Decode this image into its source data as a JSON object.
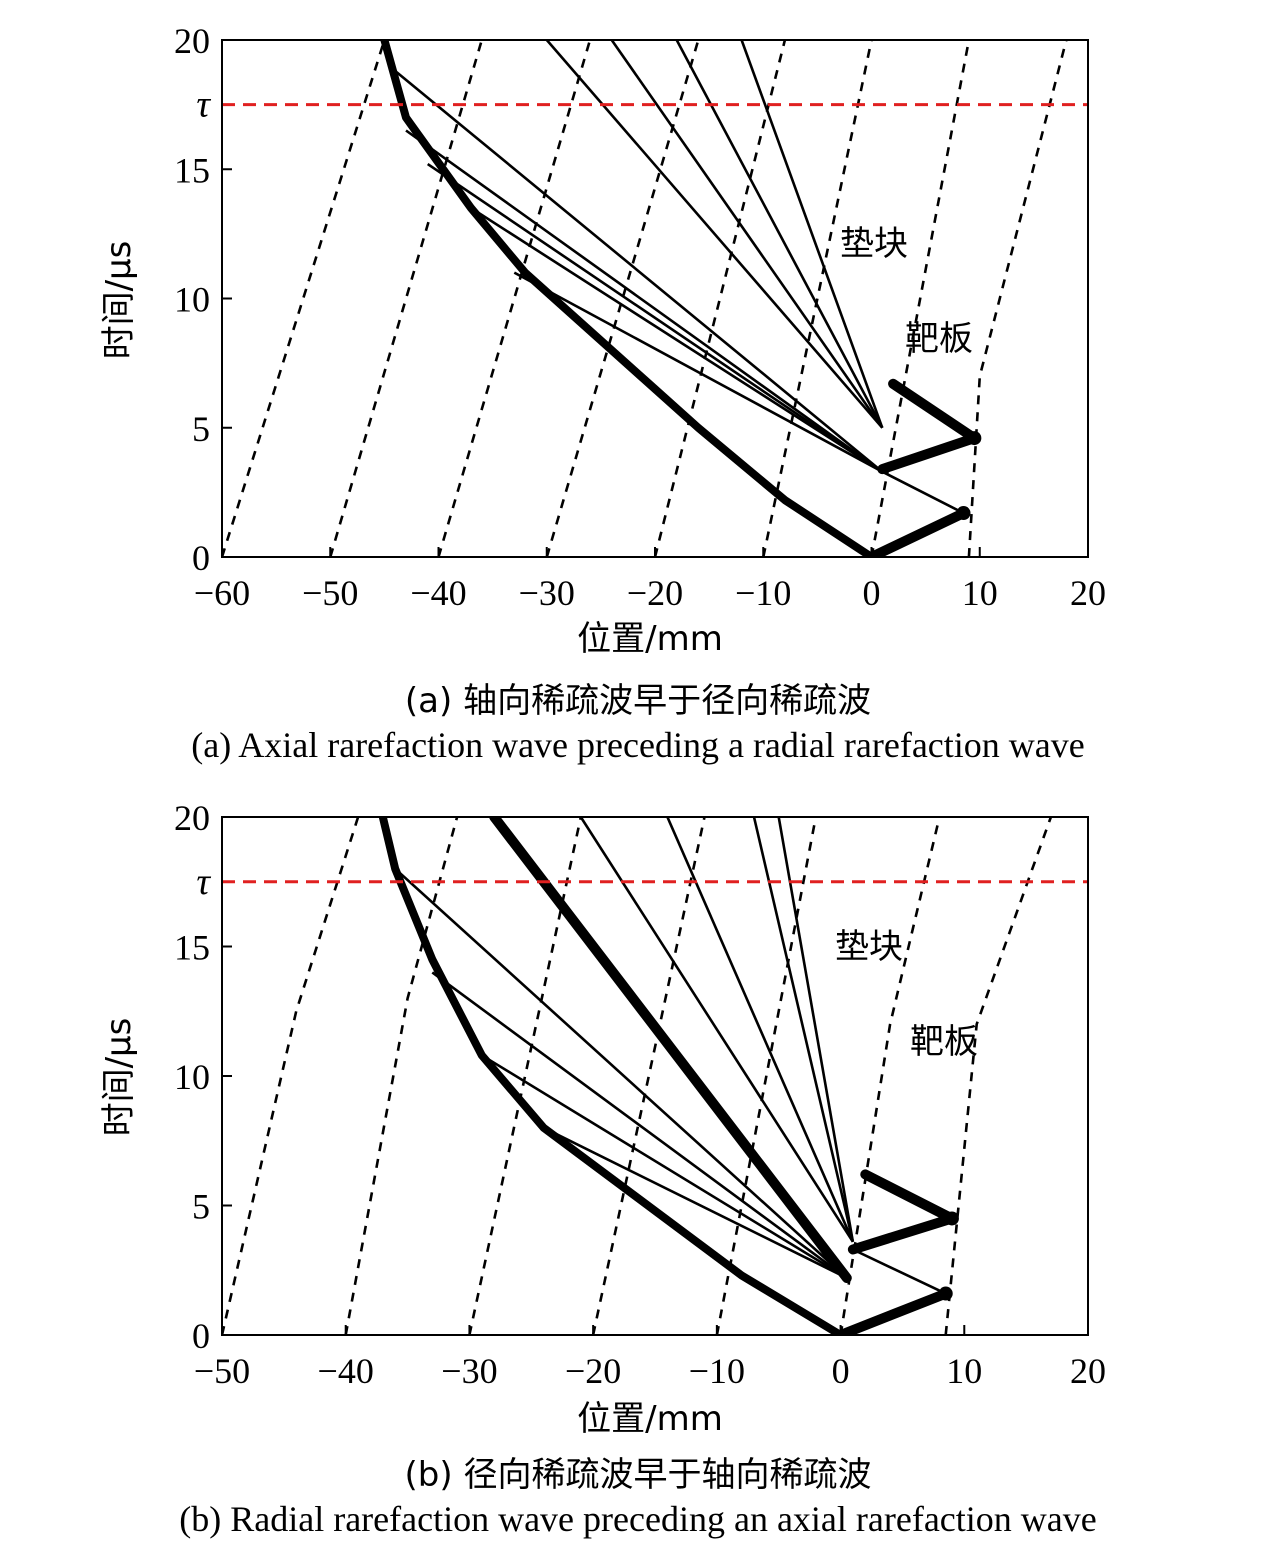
{
  "chart_data": [
    {
      "type": "line",
      "panel": "a",
      "xlabel": "位置/mm",
      "ylabel": "时间/μs",
      "xlim": [
        -60,
        20
      ],
      "ylim": [
        0,
        20
      ],
      "xticks": [
        "−60",
        "−50",
        "−40",
        "−30",
        "−20",
        "−10",
        "0",
        "10",
        "20"
      ],
      "yticks": [
        "0",
        "5",
        "10",
        "15",
        "20"
      ],
      "tau_label": "τ",
      "tau_value": 17.5,
      "region_labels": [
        "垫块",
        "靶板"
      ],
      "caption_cn": "(a) 轴向稀疏波早于径向稀疏波",
      "caption_en": "(a) Axial rarefaction wave preceding a radial rarefaction wave",
      "dashed_lines": [
        [
          [
            -60,
            0
          ],
          [
            -45,
            20
          ]
        ],
        [
          [
            -50,
            0
          ],
          [
            -36,
            20
          ]
        ],
        [
          [
            -40,
            0
          ],
          [
            -26,
            20
          ]
        ],
        [
          [
            -30,
            0
          ],
          [
            -16,
            20
          ]
        ],
        [
          [
            -20,
            0
          ],
          [
            -8,
            20
          ]
        ],
        [
          [
            -10,
            0
          ],
          [
            0,
            20
          ]
        ],
        [
          [
            0,
            0
          ],
          [
            9,
            20
          ]
        ],
        [
          [
            9,
            0
          ],
          [
            10,
            7
          ],
          [
            18,
            20
          ]
        ]
      ],
      "thick_lines": [
        [
          [
            0,
            0
          ],
          [
            -8,
            2.2
          ],
          [
            -16,
            5
          ],
          [
            -32,
            11
          ],
          [
            -37,
            13.5
          ],
          [
            -43,
            17
          ],
          [
            -45,
            20
          ]
        ],
        [
          [
            0,
            0
          ],
          [
            8.5,
            1.7
          ]
        ],
        [
          [
            1,
            3.4
          ],
          [
            9.5,
            4.6
          ]
        ],
        [
          [
            2,
            6.7
          ],
          [
            9.5,
            4.6
          ]
        ]
      ],
      "thin_lines": [
        [
          [
            1,
            3.3
          ],
          [
            -33,
            11
          ]
        ],
        [
          [
            1,
            3.3
          ],
          [
            -37,
            13.5
          ]
        ],
        [
          [
            1,
            3.3
          ],
          [
            -41,
            15.2
          ]
        ],
        [
          [
            1,
            3.3
          ],
          [
            -43,
            16.5
          ]
        ],
        [
          [
            1,
            3.3
          ],
          [
            -44,
            18.8
          ]
        ],
        [
          [
            1,
            5
          ],
          [
            -30,
            20
          ]
        ],
        [
          [
            1,
            5
          ],
          [
            -24,
            20
          ]
        ],
        [
          [
            1,
            5
          ],
          [
            -18,
            20
          ]
        ],
        [
          [
            1,
            5
          ],
          [
            -12,
            20
          ]
        ],
        [
          [
            1,
            3.3
          ],
          [
            8.5,
            1.7
          ]
        ]
      ]
    },
    {
      "type": "line",
      "panel": "b",
      "xlabel": "位置/mm",
      "ylabel": "时间/μs",
      "xlim": [
        -50,
        20
      ],
      "ylim": [
        0,
        20
      ],
      "xticks": [
        "−50",
        "−40",
        "−30",
        "−20",
        "−10",
        "0",
        "10",
        "20"
      ],
      "yticks": [
        "0",
        "5",
        "10",
        "15",
        "20"
      ],
      "tau_label": "τ",
      "tau_value": 17.5,
      "region_labels": [
        "垫块",
        "靶板"
      ],
      "caption_cn": "(b) 径向稀疏波早于轴向稀疏波",
      "caption_en": "(b) Radial rarefaction wave preceding an axial rarefaction wave",
      "dashed_lines": [
        [
          [
            -50,
            0
          ],
          [
            -44,
            12.5
          ],
          [
            -39,
            20
          ]
        ],
        [
          [
            -40,
            0
          ],
          [
            -35,
            13
          ],
          [
            -31,
            20
          ]
        ],
        [
          [
            -30,
            0
          ],
          [
            -21,
            20
          ]
        ],
        [
          [
            -20,
            0
          ],
          [
            -11,
            20
          ]
        ],
        [
          [
            -10,
            0
          ],
          [
            -2,
            20
          ]
        ],
        [
          [
            0,
            0
          ],
          [
            4,
            12
          ],
          [
            8,
            20
          ]
        ],
        [
          [
            8.5,
            0
          ],
          [
            11,
            12
          ],
          [
            17,
            20
          ]
        ]
      ],
      "thick_lines": [
        [
          [
            0,
            0
          ],
          [
            -8,
            2.3
          ],
          [
            -24,
            8
          ],
          [
            -29,
            10.8
          ],
          [
            -33,
            14.5
          ],
          [
            -36,
            18
          ],
          [
            -37,
            20
          ]
        ],
        [
          [
            0,
            0
          ],
          [
            8.5,
            1.6
          ]
        ],
        [
          [
            1,
            3.3
          ],
          [
            9,
            4.5
          ]
        ],
        [
          [
            2,
            6.2
          ],
          [
            9,
            4.5
          ]
        ],
        [
          [
            0.5,
            2.2
          ],
          [
            -28,
            20
          ]
        ]
      ],
      "thin_lines": [
        [
          [
            0.5,
            2.2
          ],
          [
            -24,
            8
          ]
        ],
        [
          [
            0.5,
            2.2
          ],
          [
            -29,
            10.8
          ]
        ],
        [
          [
            0.5,
            2.2
          ],
          [
            -33,
            14
          ]
        ],
        [
          [
            0.5,
            2.2
          ],
          [
            -36,
            18
          ]
        ],
        [
          [
            1,
            3.6
          ],
          [
            -21,
            20
          ]
        ],
        [
          [
            1,
            3.6
          ],
          [
            -14,
            20
          ]
        ],
        [
          [
            1,
            3.6
          ],
          [
            -7,
            20
          ]
        ],
        [
          [
            1,
            3.6
          ],
          [
            -5,
            20
          ]
        ],
        [
          [
            1,
            3.3
          ],
          [
            8.5,
            1.6
          ]
        ]
      ]
    }
  ]
}
